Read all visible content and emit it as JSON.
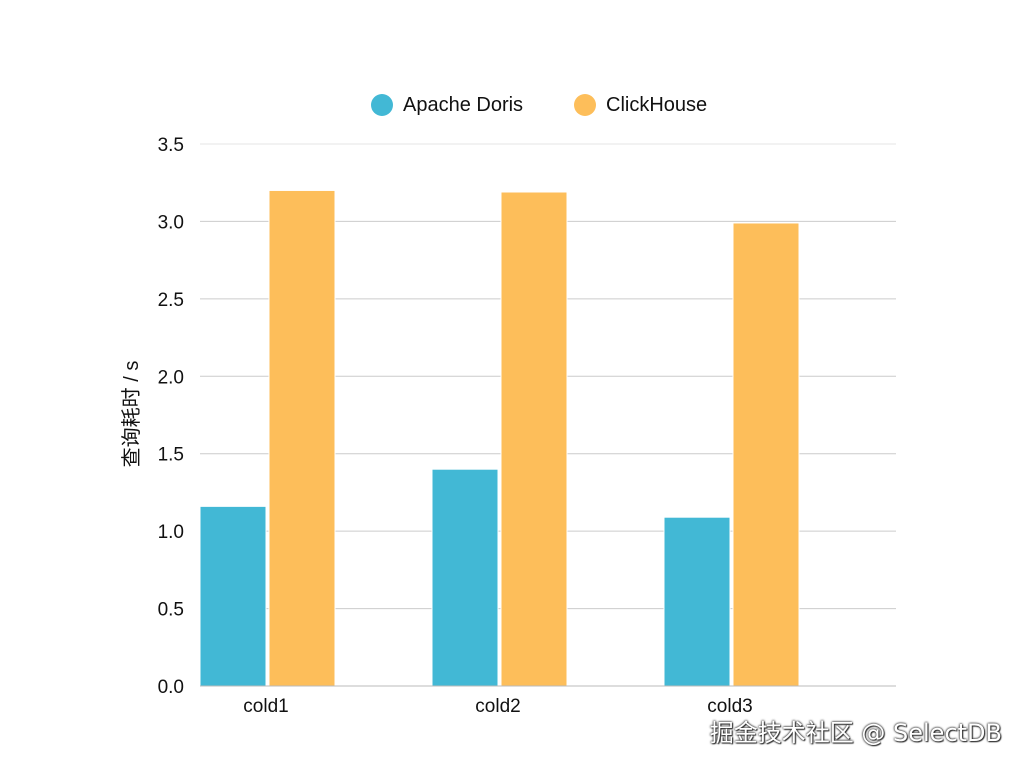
{
  "chart_data": {
    "type": "bar",
    "categories": [
      "cold1",
      "cold2",
      "cold3"
    ],
    "series": [
      {
        "name": "Apache Doris",
        "color": "#42b8d5",
        "values": [
          1.16,
          1.4,
          1.09
        ]
      },
      {
        "name": "ClickHouse",
        "color": "#fdbe5a",
        "values": [
          3.2,
          3.19,
          2.99
        ]
      }
    ],
    "title": "",
    "xlabel": "",
    "ylabel": "查询耗时 / s",
    "ylim": [
      0,
      3.5
    ],
    "yticks": [
      "0.0",
      "0.5",
      "1.0",
      "1.5",
      "2.0",
      "2.5",
      "3.0",
      "3.5"
    ],
    "ytick_values": [
      0,
      0.5,
      1.0,
      1.5,
      2.0,
      2.5,
      3.0,
      3.5
    ],
    "grid": true,
    "legend_position": "top-center"
  },
  "watermark": "掘金技术社区 @ SelectDB"
}
